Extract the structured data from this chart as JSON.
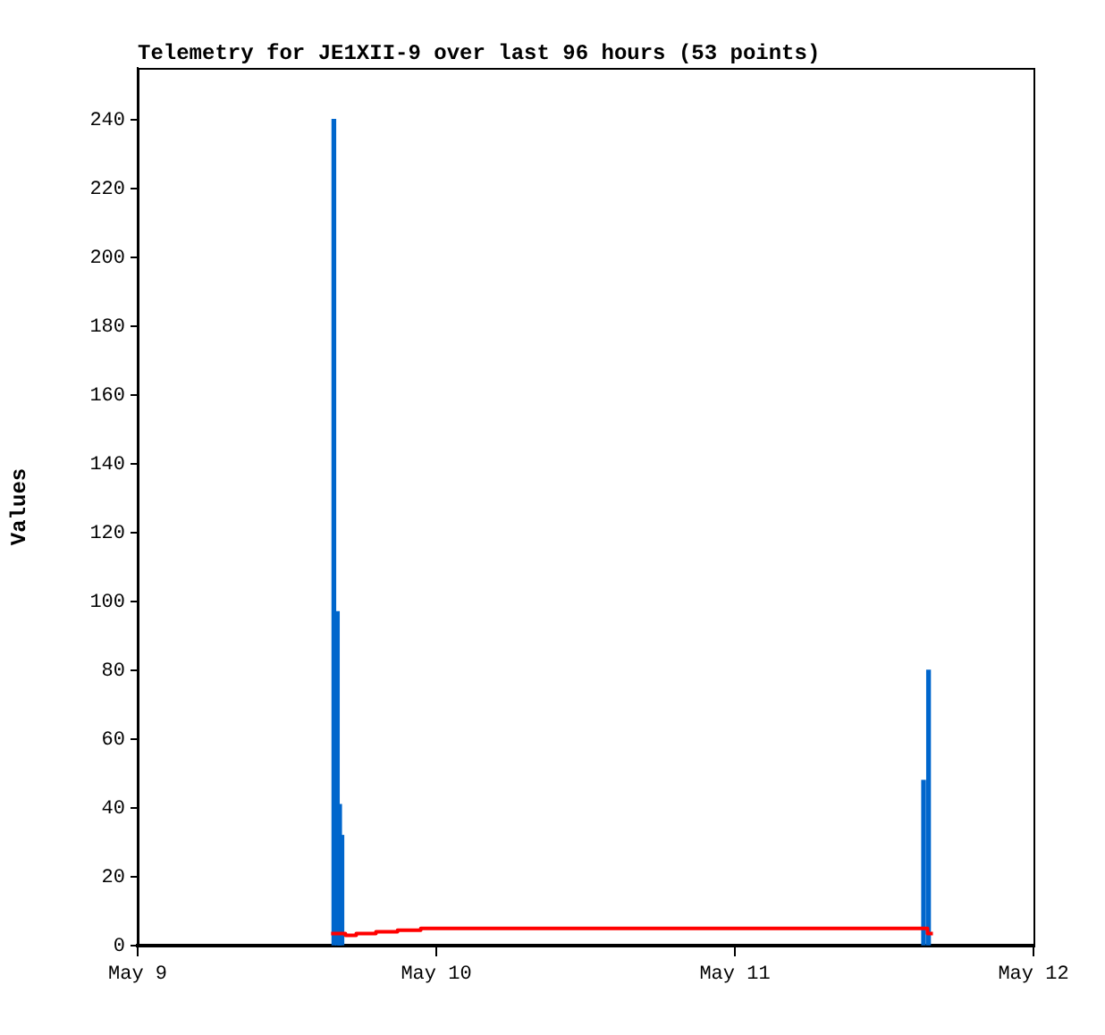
{
  "chart_data": {
    "type": "bar",
    "title": "Telemetry for JE1XII-9 over last 96 hours (53 points)",
    "ylabel": "Values",
    "series": [
      {
        "color": "#0066cc",
        "x": [
          "--05-09T15:46",
          "--05-09T16:03",
          "--05-09T16:14",
          "--05-09T16:25",
          "--05-11T15:10",
          "--05-11T15:34"
        ],
        "values": [
          240,
          97,
          41,
          32,
          48,
          80
        ]
      },
      {
        "type": "step",
        "color": "#ff0000",
        "x": [
          "--05-09T15:33",
          "--05-09T16:42",
          "--05-09T17:34",
          "--05-09T19:09",
          "--05-09T20:53",
          "--05-09T22:45",
          "--05-11T15:12",
          "--05-11T15:29",
          "--05-11T15:55"
        ],
        "values": [
          3.5,
          3,
          3.5,
          4,
          4.5,
          5,
          5,
          3.5,
          3.5
        ]
      }
    ],
    "xlim": [
      "--05-09",
      "--05-12"
    ],
    "xticks": [
      {
        "value": "--05-09",
        "label": "May 9"
      },
      {
        "value": "--05-10",
        "label": "May 10"
      },
      {
        "value": "--05-11",
        "label": "May 11"
      },
      {
        "value": "--05-12",
        "label": "May 12"
      }
    ],
    "ylim": [
      0,
      255
    ],
    "yticks": [
      0,
      20,
      40,
      60,
      80,
      100,
      120,
      140,
      160,
      180,
      200,
      220,
      240
    ],
    "grid": false,
    "legend": false
  }
}
